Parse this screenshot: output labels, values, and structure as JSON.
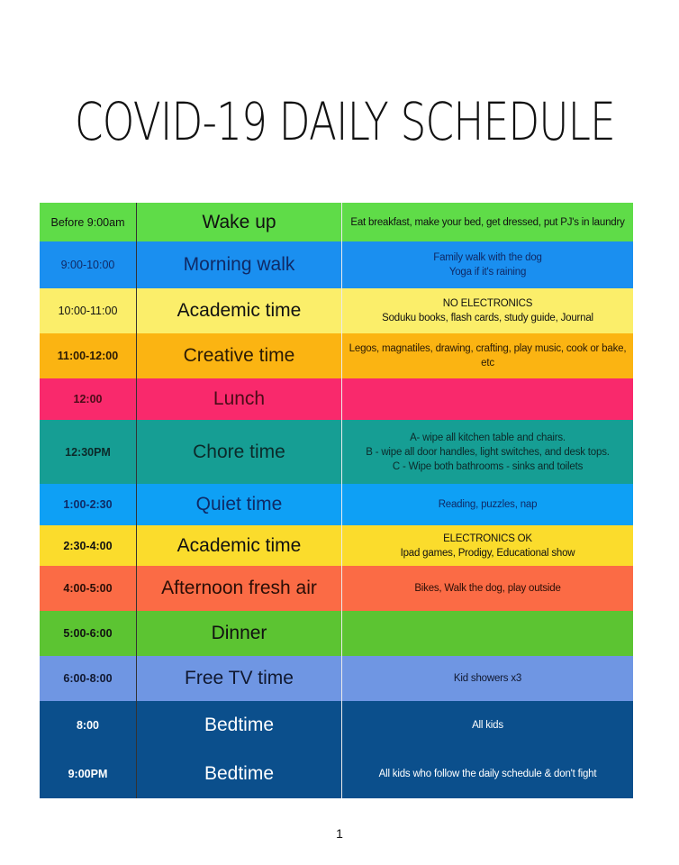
{
  "title": "COVID-19 DAILY SCHEDULE",
  "page_number": "1",
  "rows": [
    {
      "time": "Before 9:00am",
      "activity": "Wake up",
      "details": "Eat breakfast, make your bed, get dressed, put PJ's in laundry",
      "bg": "#5fdc48",
      "fg": "#111111",
      "bold": false
    },
    {
      "time": "9:00-10:00",
      "activity": "Morning walk",
      "details": "Family walk with the dog\nYoga if it's raining",
      "bg": "#1a8ff0",
      "fg": "#0f2a66",
      "bold": false
    },
    {
      "time": "10:00-11:00",
      "activity": "Academic time",
      "details": "NO ELECTRONICS\nSoduku books, flash cards, study guide, Journal",
      "bg": "#fbee6a",
      "fg": "#111111",
      "bold": false
    },
    {
      "time": "11:00-12:00",
      "activity": "Creative time",
      "details": "Legos, magnatiles, drawing, crafting, play music, cook or bake, etc",
      "bg": "#fbb412",
      "fg": "#2a1a05",
      "bold": true
    },
    {
      "time": "12:00",
      "activity": "Lunch",
      "details": "",
      "bg": "#f9296c",
      "fg": "#4a0c18",
      "bold": true
    },
    {
      "time": "12:30PM",
      "activity": "Chore time",
      "details": "A- wipe all kitchen table and chairs.\nB - wipe all door handles, light switches, and desk tops.\nC - Wipe both bathrooms - sinks and toilets",
      "bg": "#169e94",
      "fg": "#0c2a2a",
      "bold": true
    },
    {
      "time": "1:00-2:30",
      "activity": "Quiet time",
      "details": "Reading, puzzles, nap",
      "bg": "#0ea0f5",
      "fg": "#0f2a66",
      "bold": true
    },
    {
      "time": "2:30-4:00",
      "activity": "Academic time",
      "details": "ELECTRONICS OK\nIpad games, Prodigy, Educational show",
      "bg": "#fbdc2c",
      "fg": "#111111",
      "bold": true
    },
    {
      "time": "4:00-5:00",
      "activity": "Afternoon fresh air",
      "details": "Bikes, Walk the dog, play outside",
      "bg": "#fb6b45",
      "fg": "#2a0e06",
      "bold": true
    },
    {
      "time": "5:00-6:00",
      "activity": "Dinner",
      "details": "",
      "bg": "#5cc432",
      "fg": "#111111",
      "bold": true
    },
    {
      "time": "6:00-8:00",
      "activity": "Free TV time",
      "details": "Kid showers x3",
      "bg": "#6f96e3",
      "fg": "#101830",
      "bold": true
    },
    {
      "time": "8:00",
      "activity": "Bedtime",
      "details": "All kids",
      "bg": "#0b4f8c",
      "fg": "#ffffff",
      "bold": true
    },
    {
      "time": "9:00PM",
      "activity": "Bedtime",
      "details": "All kids who follow the daily schedule & don't fight",
      "bg": "#0b4f8c",
      "fg": "#ffffff",
      "bold": true
    }
  ]
}
